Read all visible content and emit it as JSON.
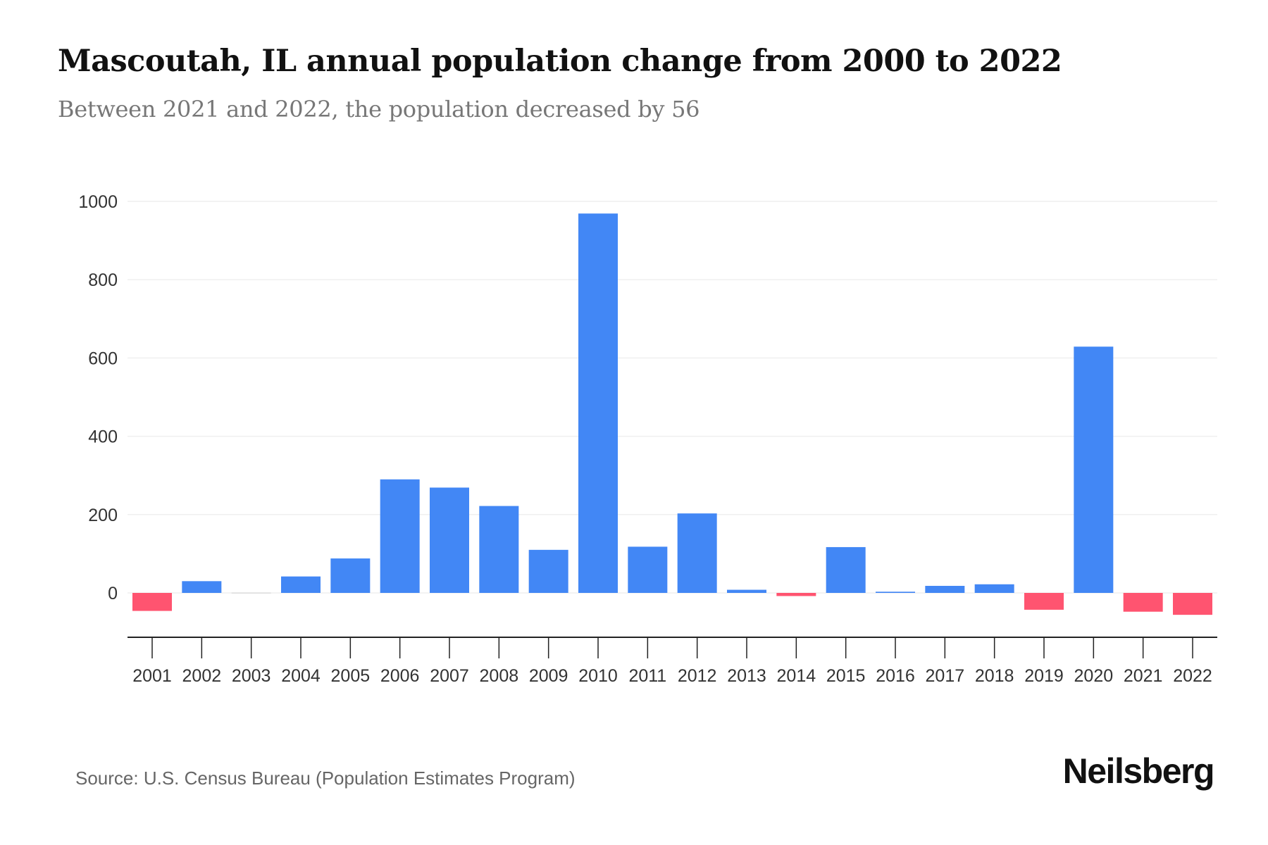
{
  "title": "Mascoutah, IL annual population change from 2000 to 2022",
  "subtitle": "Between 2021 and 2022, the population decreased by 56",
  "source": "Source: U.S. Census Bureau (Population Estimates Program)",
  "brand": "Neilsberg",
  "colors": {
    "positive": "#4287f5",
    "negative": "#ff5470",
    "zero": "#dddddd"
  },
  "chart_data": {
    "type": "bar",
    "title": "Mascoutah, IL annual population change from 2000 to 2022",
    "xlabel": "",
    "ylabel": "",
    "categories": [
      "2001",
      "2002",
      "2003",
      "2004",
      "2005",
      "2006",
      "2007",
      "2008",
      "2009",
      "2010",
      "2011",
      "2012",
      "2013",
      "2014",
      "2015",
      "2016",
      "2017",
      "2018",
      "2019",
      "2020",
      "2021",
      "2022"
    ],
    "values": [
      -46,
      30,
      1,
      42,
      88,
      290,
      269,
      222,
      110,
      969,
      118,
      203,
      8,
      -8,
      117,
      3,
      18,
      22,
      -43,
      629,
      -48,
      -56
    ],
    "yticks": [
      0,
      200,
      400,
      600,
      800,
      1000
    ],
    "ylim": [
      -115,
      1000
    ],
    "grid": true
  }
}
